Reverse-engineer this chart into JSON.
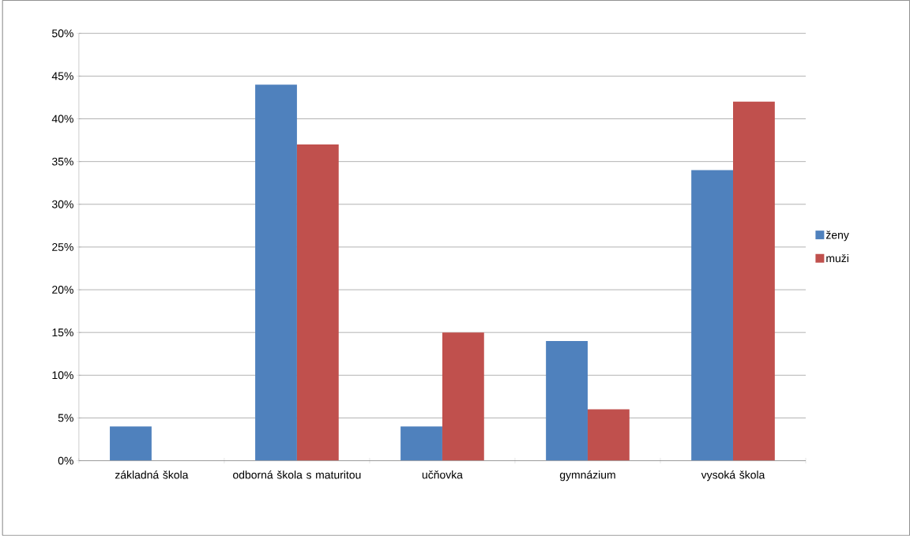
{
  "chart_data": {
    "type": "bar",
    "categories": [
      "základná škola",
      "odborná škola s maturitou",
      "učňovka",
      "gymnázium",
      "vysoká škola"
    ],
    "series": [
      {
        "name": "ženy",
        "color": "#4f81bd",
        "values": [
          4,
          44,
          4,
          14,
          34
        ]
      },
      {
        "name": "muži",
        "color": "#c0504d",
        "values": [
          0,
          37,
          15,
          6,
          42
        ]
      }
    ],
    "ylim": [
      0,
      50
    ],
    "yticks": [
      {
        "value": 0,
        "label": "0%"
      },
      {
        "value": 5,
        "label": "5%"
      },
      {
        "value": 10,
        "label": "10%"
      },
      {
        "value": 15,
        "label": "15%"
      },
      {
        "value": 20,
        "label": "20%"
      },
      {
        "value": 25,
        "label": "25%"
      },
      {
        "value": 30,
        "label": "30%"
      },
      {
        "value": 35,
        "label": "35%"
      },
      {
        "value": 40,
        "label": "40%"
      },
      {
        "value": 45,
        "label": "45%"
      },
      {
        "value": 50,
        "label": "50%"
      }
    ],
    "grid": "y",
    "legend": "right"
  }
}
